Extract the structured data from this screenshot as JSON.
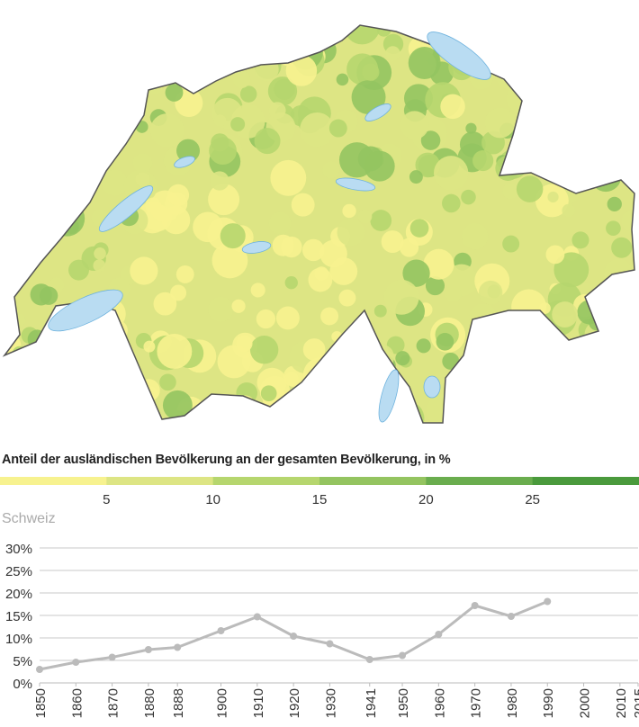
{
  "map": {
    "legend_title": "Anteil der ausländischen Bevölkerung an der gesamten Bevölkerung, in %",
    "legend_bins": [
      {
        "from": 0,
        "to": 5,
        "color": "#f7f28f"
      },
      {
        "from": 5,
        "to": 10,
        "color": "#dde584"
      },
      {
        "from": 10,
        "to": 15,
        "color": "#b6d66e"
      },
      {
        "from": 15,
        "to": 20,
        "color": "#94c460"
      },
      {
        "from": 20,
        "to": 25,
        "color": "#6aad4e"
      },
      {
        "from": 25,
        "to": 30,
        "color": "#4a9a3c"
      }
    ],
    "legend_ticks": [
      "5",
      "10",
      "15",
      "20",
      "25"
    ],
    "lake_color": "#b9dcf2",
    "border_color": "#555555"
  },
  "chart_data": {
    "type": "line",
    "title": "Schweiz",
    "x": [
      1850,
      1860,
      1870,
      1880,
      1888,
      1900,
      1910,
      1920,
      1930,
      1941,
      1950,
      1960,
      1970,
      1980,
      1990
    ],
    "values": [
      3.0,
      4.6,
      5.7,
      7.4,
      7.9,
      11.6,
      14.7,
      10.4,
      8.7,
      5.2,
      6.1,
      10.8,
      17.2,
      14.8,
      18.1
    ],
    "x_ticks": [
      "1850",
      "1860",
      "1870",
      "1880",
      "1888",
      "1900",
      "1910",
      "1920",
      "1930",
      "1941",
      "1950",
      "1960",
      "1970",
      "1980",
      "1990",
      "2000",
      "2010",
      "2015"
    ],
    "y_ticks": [
      "0%",
      "5%",
      "10%",
      "15%",
      "20%",
      "25%",
      "30%"
    ],
    "xlim": [
      1850,
      2015
    ],
    "ylim": [
      0,
      30
    ],
    "grid": true,
    "line_color": "#bbbbbb"
  }
}
